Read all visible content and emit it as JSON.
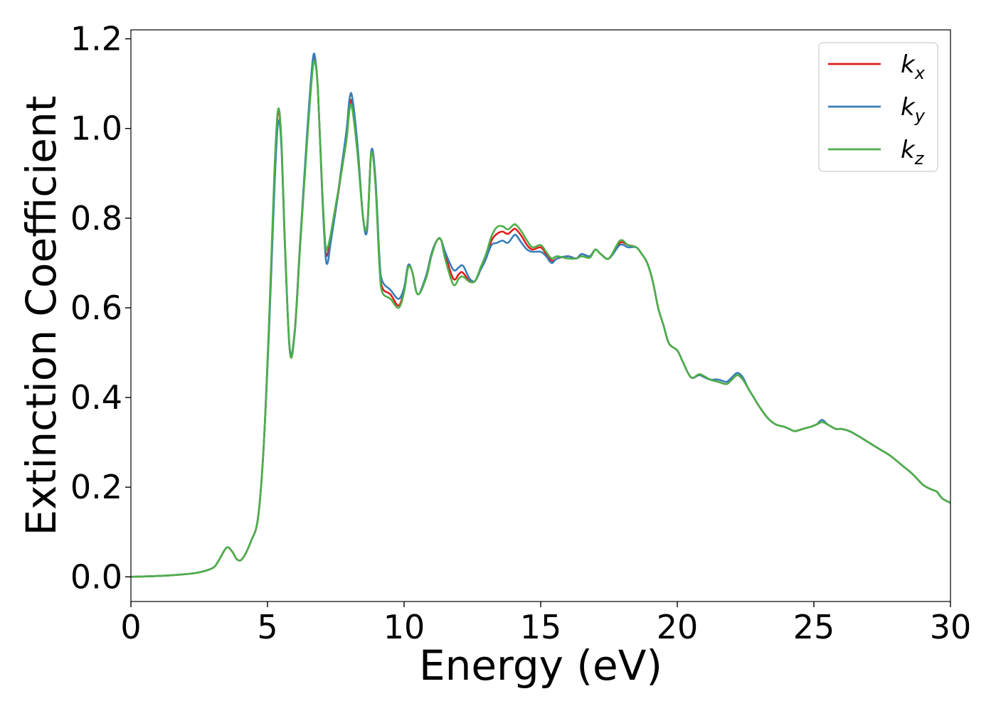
{
  "chart_data": {
    "type": "line",
    "title": "",
    "xlabel": "Energy (eV)",
    "ylabel": "Extinction Coefficient",
    "xlim": [
      0,
      30
    ],
    "ylim": [
      -0.055,
      1.22
    ],
    "xticks": [
      0,
      5,
      10,
      15,
      20,
      25,
      30
    ],
    "yticks": [
      0.0,
      0.2,
      0.4,
      0.6,
      0.8,
      1.0,
      1.2
    ],
    "xtick_labels": [
      "0",
      "5",
      "10",
      "15",
      "20",
      "25",
      "30"
    ],
    "ytick_labels": [
      "0.0",
      "0.2",
      "0.4",
      "0.6",
      "0.8",
      "1.0",
      "1.2"
    ],
    "grid": false,
    "legend_position": "top-right",
    "series": [
      {
        "name": "k_x",
        "label_main": "k",
        "label_sub": "x",
        "color": "#e41a1c",
        "x": [
          0,
          1,
          2,
          2.5,
          3,
          3.2,
          3.5,
          3.7,
          3.9,
          4.1,
          4.4,
          4.65,
          4.85,
          5.05,
          5.25,
          5.38,
          5.5,
          5.65,
          5.82,
          6.0,
          6.2,
          6.45,
          6.65,
          6.75,
          6.85,
          7.0,
          7.12,
          7.2,
          7.3,
          7.5,
          7.7,
          7.9,
          8.0,
          8.1,
          8.3,
          8.5,
          8.65,
          8.8,
          8.95,
          9.1,
          9.2,
          9.5,
          9.8,
          10.0,
          10.15,
          10.3,
          10.5,
          10.8,
          11.0,
          11.2,
          11.35,
          11.5,
          11.8,
          12.0,
          12.1,
          12.2,
          12.4,
          12.6,
          12.8,
          13.0,
          13.2,
          13.4,
          13.6,
          13.8,
          14.0,
          14.1,
          14.3,
          14.5,
          14.7,
          15.0,
          15.2,
          15.4,
          15.6,
          16.0,
          16.3,
          16.5,
          16.8,
          17.0,
          17.2,
          17.5,
          17.9,
          18.2,
          18.5,
          18.7,
          18.9,
          19.1,
          19.3,
          19.5,
          19.7,
          20.0,
          20.2,
          20.5,
          20.8,
          21.0,
          21.2,
          21.5,
          21.8,
          22.0,
          22.2,
          22.4,
          22.6,
          22.8,
          23.0,
          23.3,
          23.6,
          23.9,
          24.1,
          24.3,
          24.6,
          24.9,
          25.1,
          25.3,
          25.5,
          25.8,
          26.0,
          26.3,
          26.6,
          27.0,
          27.4,
          27.8,
          28.2,
          28.6,
          29.0,
          29.3,
          29.5,
          29.7,
          30.0
        ],
        "y": [
          0.0,
          0.002,
          0.006,
          0.01,
          0.02,
          0.035,
          0.065,
          0.057,
          0.038,
          0.042,
          0.08,
          0.13,
          0.28,
          0.55,
          0.88,
          1.035,
          0.98,
          0.72,
          0.505,
          0.55,
          0.75,
          0.98,
          1.14,
          1.15,
          1.08,
          0.86,
          0.73,
          0.72,
          0.75,
          0.82,
          0.9,
          0.98,
          1.05,
          1.055,
          0.95,
          0.8,
          0.78,
          0.95,
          0.88,
          0.7,
          0.645,
          0.63,
          0.605,
          0.64,
          0.695,
          0.68,
          0.63,
          0.67,
          0.72,
          0.75,
          0.752,
          0.72,
          0.665,
          0.675,
          0.68,
          0.675,
          0.66,
          0.66,
          0.685,
          0.71,
          0.75,
          0.765,
          0.77,
          0.765,
          0.775,
          0.775,
          0.76,
          0.74,
          0.73,
          0.735,
          0.72,
          0.705,
          0.71,
          0.715,
          0.71,
          0.72,
          0.715,
          0.73,
          0.72,
          0.71,
          0.745,
          0.74,
          0.735,
          0.72,
          0.7,
          0.66,
          0.6,
          0.56,
          0.52,
          0.505,
          0.48,
          0.445,
          0.45,
          0.445,
          0.44,
          0.435,
          0.43,
          0.44,
          0.45,
          0.44,
          0.42,
          0.4,
          0.38,
          0.355,
          0.34,
          0.335,
          0.33,
          0.325,
          0.33,
          0.335,
          0.34,
          0.345,
          0.34,
          0.33,
          0.33,
          0.325,
          0.315,
          0.3,
          0.285,
          0.27,
          0.25,
          0.23,
          0.205,
          0.195,
          0.19,
          0.175,
          0.165
        ]
      },
      {
        "name": "k_y",
        "label_main": "k",
        "label_sub": "y",
        "color": "#377eb8",
        "x": [
          0,
          1,
          2,
          2.5,
          3,
          3.2,
          3.5,
          3.7,
          3.9,
          4.1,
          4.4,
          4.65,
          4.85,
          5.05,
          5.25,
          5.38,
          5.5,
          5.65,
          5.82,
          6.0,
          6.2,
          6.45,
          6.65,
          6.75,
          6.85,
          7.0,
          7.12,
          7.2,
          7.3,
          7.5,
          7.7,
          7.9,
          8.0,
          8.1,
          8.3,
          8.5,
          8.65,
          8.8,
          8.95,
          9.1,
          9.2,
          9.5,
          9.8,
          10.0,
          10.15,
          10.3,
          10.5,
          10.8,
          11.0,
          11.2,
          11.35,
          11.5,
          11.8,
          12.0,
          12.1,
          12.2,
          12.4,
          12.6,
          12.8,
          13.0,
          13.2,
          13.4,
          13.6,
          13.8,
          14.0,
          14.1,
          14.3,
          14.5,
          14.7,
          15.0,
          15.2,
          15.4,
          15.6,
          16.0,
          16.3,
          16.5,
          16.8,
          17.0,
          17.2,
          17.5,
          17.9,
          18.2,
          18.5,
          18.7,
          18.9,
          19.1,
          19.3,
          19.5,
          19.7,
          20.0,
          20.2,
          20.5,
          20.8,
          21.0,
          21.2,
          21.5,
          21.8,
          22.0,
          22.2,
          22.4,
          22.6,
          22.8,
          23.0,
          23.3,
          23.6,
          23.9,
          24.1,
          24.3,
          24.6,
          24.9,
          25.1,
          25.3,
          25.5,
          25.8,
          26.0,
          26.3,
          26.6,
          27.0,
          27.4,
          27.8,
          28.2,
          28.6,
          29.0,
          29.3,
          29.5,
          29.7,
          30.0
        ],
        "y": [
          0.0,
          0.002,
          0.006,
          0.01,
          0.02,
          0.035,
          0.065,
          0.057,
          0.038,
          0.042,
          0.08,
          0.13,
          0.28,
          0.54,
          0.86,
          1.01,
          0.97,
          0.72,
          0.505,
          0.55,
          0.75,
          0.99,
          1.15,
          1.155,
          1.08,
          0.86,
          0.72,
          0.7,
          0.74,
          0.82,
          0.91,
          1.0,
          1.065,
          1.07,
          0.96,
          0.8,
          0.775,
          0.95,
          0.89,
          0.71,
          0.66,
          0.64,
          0.62,
          0.645,
          0.695,
          0.68,
          0.63,
          0.67,
          0.72,
          0.75,
          0.752,
          0.725,
          0.685,
          0.69,
          0.695,
          0.69,
          0.665,
          0.66,
          0.685,
          0.71,
          0.74,
          0.745,
          0.75,
          0.745,
          0.76,
          0.762,
          0.745,
          0.73,
          0.725,
          0.725,
          0.715,
          0.7,
          0.71,
          0.715,
          0.71,
          0.72,
          0.715,
          0.73,
          0.72,
          0.71,
          0.74,
          0.735,
          0.735,
          0.72,
          0.7,
          0.66,
          0.6,
          0.56,
          0.52,
          0.505,
          0.48,
          0.445,
          0.45,
          0.445,
          0.44,
          0.44,
          0.435,
          0.445,
          0.455,
          0.445,
          0.42,
          0.4,
          0.38,
          0.355,
          0.34,
          0.335,
          0.33,
          0.325,
          0.33,
          0.335,
          0.34,
          0.35,
          0.34,
          0.33,
          0.33,
          0.325,
          0.315,
          0.3,
          0.285,
          0.27,
          0.25,
          0.23,
          0.205,
          0.195,
          0.19,
          0.175,
          0.165
        ]
      },
      {
        "name": "k_z",
        "label_main": "k",
        "label_sub": "z",
        "color": "#4daf4a",
        "x": [
          0,
          1,
          2,
          2.5,
          3,
          3.2,
          3.5,
          3.7,
          3.9,
          4.1,
          4.4,
          4.65,
          4.85,
          5.05,
          5.25,
          5.38,
          5.5,
          5.65,
          5.82,
          6.0,
          6.2,
          6.45,
          6.65,
          6.75,
          6.85,
          7.0,
          7.12,
          7.2,
          7.3,
          7.5,
          7.7,
          7.9,
          8.0,
          8.1,
          8.3,
          8.5,
          8.65,
          8.8,
          8.95,
          9.1,
          9.2,
          9.5,
          9.8,
          10.0,
          10.15,
          10.3,
          10.5,
          10.8,
          11.0,
          11.2,
          11.35,
          11.5,
          11.8,
          12.0,
          12.1,
          12.2,
          12.4,
          12.6,
          12.8,
          13.0,
          13.2,
          13.4,
          13.6,
          13.8,
          14.0,
          14.1,
          14.3,
          14.5,
          14.7,
          15.0,
          15.2,
          15.4,
          15.6,
          16.0,
          16.3,
          16.5,
          16.8,
          17.0,
          17.2,
          17.5,
          17.9,
          18.2,
          18.5,
          18.7,
          18.9,
          19.1,
          19.3,
          19.5,
          19.7,
          20.0,
          20.2,
          20.5,
          20.8,
          21.0,
          21.2,
          21.5,
          21.8,
          22.0,
          22.2,
          22.4,
          22.6,
          22.8,
          23.0,
          23.3,
          23.6,
          23.9,
          24.1,
          24.3,
          24.6,
          24.9,
          25.1,
          25.3,
          25.5,
          25.8,
          26.0,
          26.3,
          26.6,
          27.0,
          27.4,
          27.8,
          28.2,
          28.6,
          29.0,
          29.3,
          29.5,
          29.7,
          30.0
        ],
        "y": [
          0.0,
          0.002,
          0.006,
          0.01,
          0.02,
          0.035,
          0.065,
          0.057,
          0.038,
          0.042,
          0.08,
          0.13,
          0.28,
          0.56,
          0.9,
          1.04,
          0.985,
          0.73,
          0.5,
          0.545,
          0.74,
          0.97,
          1.13,
          1.145,
          1.08,
          0.87,
          0.74,
          0.735,
          0.76,
          0.83,
          0.9,
          0.98,
          1.04,
          1.045,
          0.94,
          0.8,
          0.785,
          0.945,
          0.875,
          0.69,
          0.635,
          0.62,
          0.6,
          0.635,
          0.69,
          0.68,
          0.63,
          0.665,
          0.715,
          0.75,
          0.752,
          0.71,
          0.652,
          0.665,
          0.67,
          0.668,
          0.658,
          0.66,
          0.69,
          0.72,
          0.76,
          0.78,
          0.782,
          0.775,
          0.785,
          0.785,
          0.77,
          0.75,
          0.735,
          0.74,
          0.725,
          0.71,
          0.715,
          0.71,
          0.71,
          0.715,
          0.712,
          0.73,
          0.72,
          0.71,
          0.75,
          0.74,
          0.735,
          0.72,
          0.7,
          0.66,
          0.6,
          0.56,
          0.52,
          0.505,
          0.48,
          0.445,
          0.452,
          0.447,
          0.44,
          0.435,
          0.43,
          0.44,
          0.45,
          0.44,
          0.42,
          0.4,
          0.38,
          0.355,
          0.34,
          0.335,
          0.33,
          0.325,
          0.33,
          0.335,
          0.34,
          0.345,
          0.34,
          0.33,
          0.33,
          0.325,
          0.315,
          0.3,
          0.285,
          0.27,
          0.25,
          0.23,
          0.205,
          0.195,
          0.19,
          0.175,
          0.165
        ]
      }
    ]
  }
}
